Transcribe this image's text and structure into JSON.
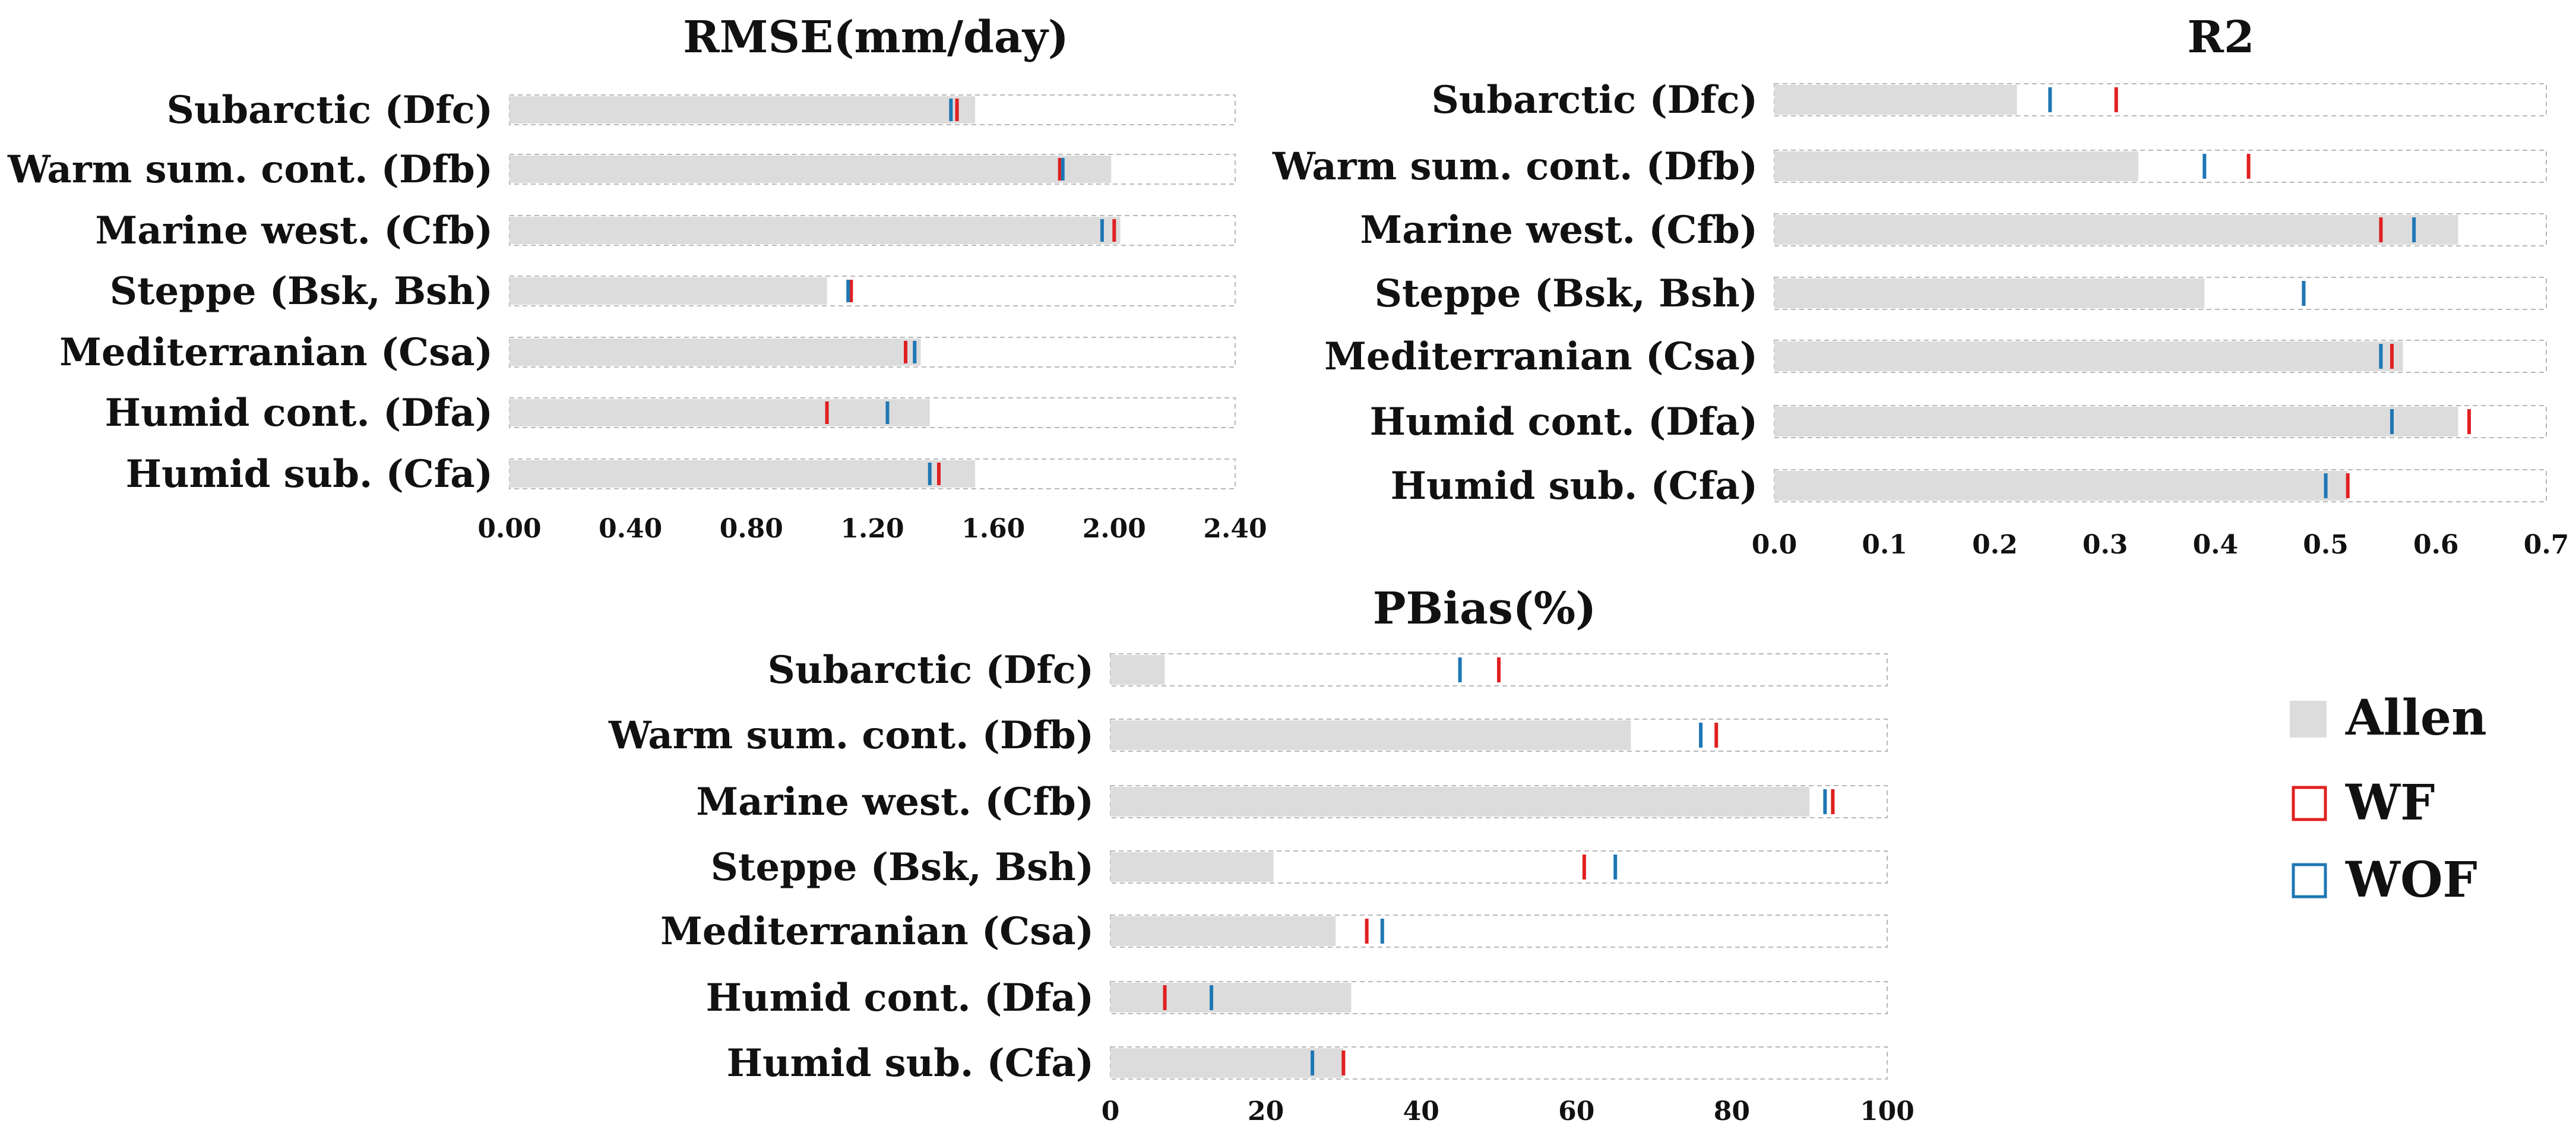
{
  "chart_data": [
    {
      "type": "bar",
      "title": "RMSE(mm/day)",
      "categories": [
        "Subarctic (Dfc)",
        "Warm sum. cont. (Dfb)",
        "Marine west. (Cfb)",
        "Steppe (Bsk, Bsh)",
        "Mediterranian (Csa)",
        "Humid cont. (Dfa)",
        "Humid sub. (Cfa)"
      ],
      "series": [
        {
          "name": "Allen",
          "style": "bar",
          "values": [
            1.54,
            1.99,
            2.02,
            1.05,
            1.36,
            1.39,
            1.54
          ]
        },
        {
          "name": "WF",
          "style": "marker",
          "values": [
            1.48,
            1.82,
            2.0,
            1.13,
            1.31,
            1.05,
            1.42
          ]
        },
        {
          "name": "WOF",
          "style": "marker",
          "values": [
            1.46,
            1.83,
            1.96,
            1.12,
            1.34,
            1.25,
            1.39
          ]
        }
      ],
      "xticks": [
        "0.00",
        "0.40",
        "0.80",
        "1.20",
        "1.60",
        "2.00",
        "2.40"
      ],
      "xlim": [
        0,
        2.4
      ]
    },
    {
      "type": "bar",
      "title": "R2",
      "categories": [
        "Subarctic (Dfc)",
        "Warm sum. cont. (Dfb)",
        "Marine west. (Cfb)",
        "Steppe (Bsk, Bsh)",
        "Mediterranian (Csa)",
        "Humid cont. (Dfa)",
        "Humid sub. (Cfa)"
      ],
      "series": [
        {
          "name": "Allen",
          "style": "bar",
          "values": [
            0.22,
            0.33,
            0.62,
            0.39,
            0.57,
            0.62,
            0.52
          ]
        },
        {
          "name": "WF",
          "style": "marker",
          "values": [
            0.31,
            0.43,
            0.55,
            0.48,
            0.56,
            0.63,
            0.52
          ]
        },
        {
          "name": "WOF",
          "style": "marker",
          "values": [
            0.25,
            0.39,
            0.58,
            0.48,
            0.55,
            0.56,
            0.5
          ]
        }
      ],
      "xticks": [
        "0.0",
        "0.1",
        "0.2",
        "0.3",
        "0.4",
        "0.5",
        "0.6",
        "0.7"
      ],
      "xlim": [
        0,
        0.7
      ]
    },
    {
      "type": "bar",
      "title": "PBias(%)",
      "categories": [
        "Subarctic (Dfc)",
        "Warm sum. cont. (Dfb)",
        "Marine west. (Cfb)",
        "Steppe (Bsk, Bsh)",
        "Mediterranian (Csa)",
        "Humid cont. (Dfa)",
        "Humid sub. (Cfa)"
      ],
      "series": [
        {
          "name": "Allen",
          "style": "bar",
          "values": [
            7,
            67,
            90,
            21,
            29,
            31,
            30
          ]
        },
        {
          "name": "WF",
          "style": "marker",
          "values": [
            50,
            78,
            93,
            61,
            33,
            7,
            30
          ]
        },
        {
          "name": "WOF",
          "style": "marker",
          "values": [
            45,
            76,
            92,
            65,
            35,
            13,
            26
          ]
        }
      ],
      "xticks": [
        "0",
        "20",
        "40",
        "60",
        "80",
        "100"
      ],
      "xlim": [
        0,
        100
      ]
    }
  ],
  "legend": [
    {
      "label": "Allen",
      "style": "bar"
    },
    {
      "label": "WF",
      "style": "marker"
    },
    {
      "label": "WOF",
      "style": "marker"
    }
  ],
  "colors": {
    "Allen": "#dcdcdc",
    "WF": "#e02020",
    "WOF": "#1f77b4",
    "frame": "#b8b8b8"
  }
}
